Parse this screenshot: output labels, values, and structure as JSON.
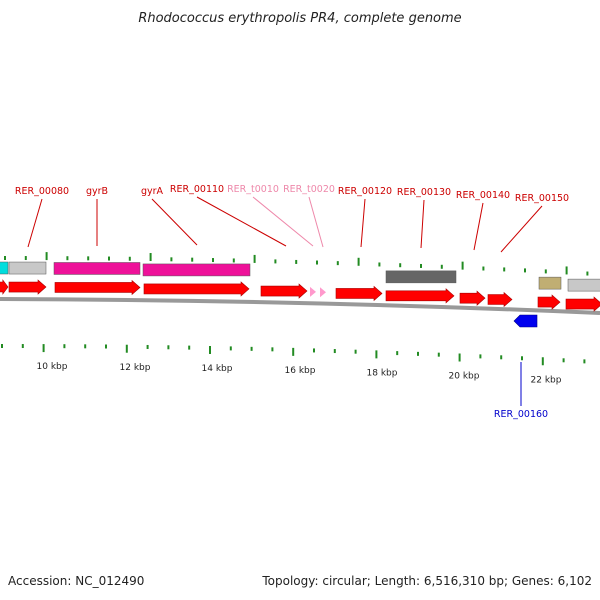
{
  "title": "Rhodococcus erythropolis PR4, complete genome",
  "footer": {
    "accession": "Accession: NC_012490",
    "summary": "Topology: circular; Length: 6,516,310 bp; Genes: 6,102"
  },
  "colors": {
    "cds_forward": "#ff0000",
    "cds_reverse": "#0000ee",
    "trna": "#ff99cc",
    "gene_label": "#cc0000",
    "trna_label": "#ee88aa",
    "reverse_label": "#0000cc",
    "tick": "#228b22",
    "backbone": "#999999",
    "magenta_box": "#ee1199",
    "dark_box": "#666666",
    "olive_box": "#c0ae73",
    "grey_box": "#c8c8c8",
    "cyan_box": "#00dddd"
  },
  "scale": {
    "unit": "kbp",
    "labels": [
      "10 kbp",
      "12 kbp",
      "14 kbp",
      "16 kbp",
      "18 kbp",
      "20 kbp",
      "22 kbp"
    ]
  },
  "gene_labels": [
    {
      "text": "RER_00080",
      "kind": "cds"
    },
    {
      "text": "gyrB",
      "kind": "cds"
    },
    {
      "text": "gyrA",
      "kind": "cds"
    },
    {
      "text": "RER_00110",
      "kind": "cds"
    },
    {
      "text": "RER_t0010",
      "kind": "trna"
    },
    {
      "text": "RER_t0020",
      "kind": "trna"
    },
    {
      "text": "RER_00120",
      "kind": "cds"
    },
    {
      "text": "RER_00130",
      "kind": "cds"
    },
    {
      "text": "RER_00140",
      "kind": "cds"
    },
    {
      "text": "RER_00150",
      "kind": "cds"
    },
    {
      "text": "RER_00160",
      "kind": "reverse"
    }
  ]
}
